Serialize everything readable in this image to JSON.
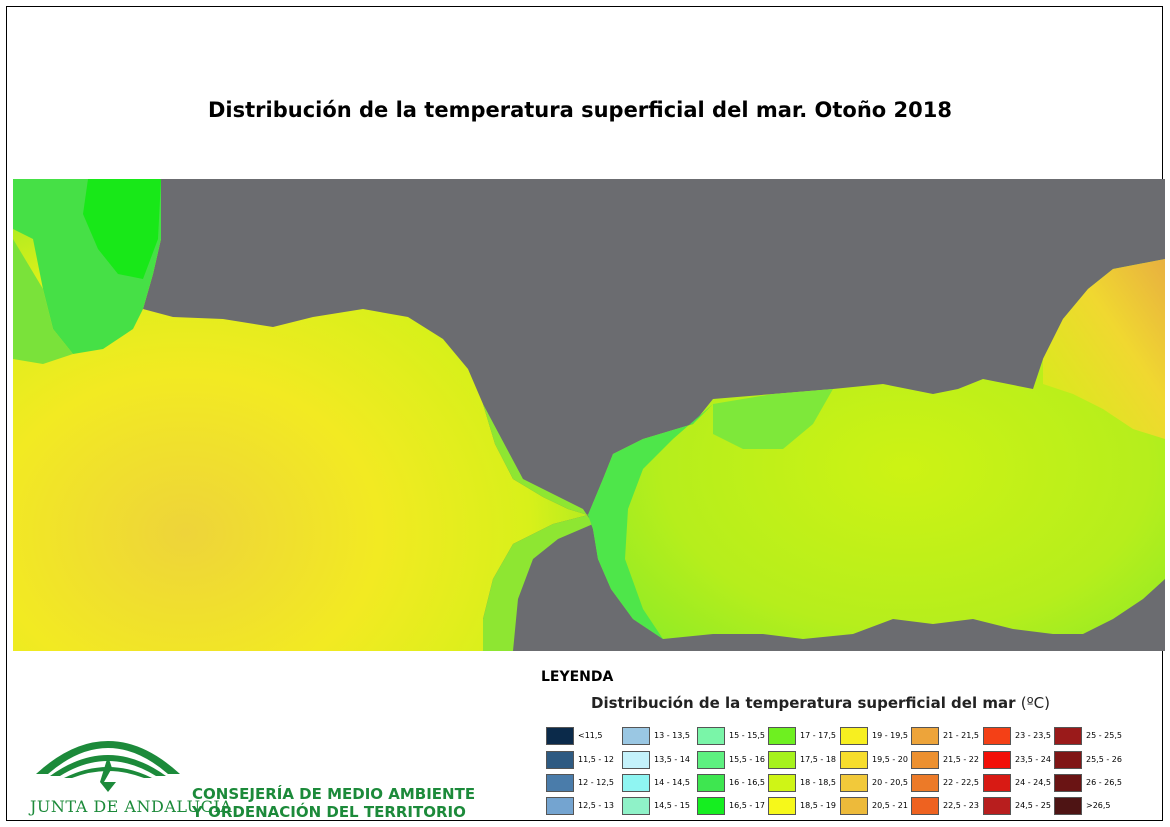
{
  "title": "Distribución de la temperatura superficial del mar. Otoño 2018",
  "legend": {
    "heading": "LEYENDA",
    "subtitle": "Distribución de la temperatura superficial del mar",
    "unit": "(ºC)",
    "classes": [
      {
        "label": "<11,5",
        "color": "#0b2a4a"
      },
      {
        "label": "11,5 - 12",
        "color": "#2e5a82"
      },
      {
        "label": "12 - 12,5",
        "color": "#4a7caa"
      },
      {
        "label": "12,5 - 13",
        "color": "#74a4d0"
      },
      {
        "label": "13 - 13,5",
        "color": "#9ac7e3"
      },
      {
        "label": "13,5 - 14",
        "color": "#c4f2fb"
      },
      {
        "label": "14 - 14,5",
        "color": "#8ff5f2"
      },
      {
        "label": "14,5 - 15",
        "color": "#8ff2c8"
      },
      {
        "label": "15 - 15,5",
        "color": "#7af5a8"
      },
      {
        "label": "15,5 - 16",
        "color": "#5ef080"
      },
      {
        "label": "16 - 16,5",
        "color": "#3ee650"
      },
      {
        "label": "16,5 - 17",
        "color": "#15ee20"
      },
      {
        "label": "17 - 17,5",
        "color": "#6ef020"
      },
      {
        "label": "17,5 - 18",
        "color": "#a6f21c"
      },
      {
        "label": "18 - 18,5",
        "color": "#cff516"
      },
      {
        "label": "18,5 - 19",
        "color": "#f6f81a"
      },
      {
        "label": "19 - 19,5",
        "color": "#f7ef20"
      },
      {
        "label": "19,5 - 20",
        "color": "#f7dd2c"
      },
      {
        "label": "20 - 20,5",
        "color": "#f2c93a"
      },
      {
        "label": "20,5 - 21",
        "color": "#edba3a"
      },
      {
        "label": "21 - 21,5",
        "color": "#eda43a"
      },
      {
        "label": "21,5 - 22",
        "color": "#ec9030"
      },
      {
        "label": "22 - 22,5",
        "color": "#ec7a28"
      },
      {
        "label": "22,5 - 23",
        "color": "#ee6220"
      },
      {
        "label": "23 - 23,5",
        "color": "#f44016"
      },
      {
        "label": "23,5 - 24",
        "color": "#f21008"
      },
      {
        "label": "24 - 24,5",
        "color": "#d81a14"
      },
      {
        "label": "24,5 - 25",
        "color": "#b81e1e"
      },
      {
        "label": "25 - 25,5",
        "color": "#9a1a1a"
      },
      {
        "label": "25,5 - 26",
        "color": "#801616"
      },
      {
        "label": "26 - 26,5",
        "color": "#6a1414"
      },
      {
        "label": ">26,5",
        "color": "#4e1414"
      }
    ]
  },
  "colors": {
    "land": "#6b6c70",
    "institutional_green": "#1c8a3a"
  },
  "logo": {
    "text": "JUNTA DE ANDALUCIA"
  },
  "org": {
    "line1": "CONSEJERÍA DE MEDIO AMBIENTE",
    "line2": "Y ORDENACIÓN DEL TERRITORIO"
  }
}
